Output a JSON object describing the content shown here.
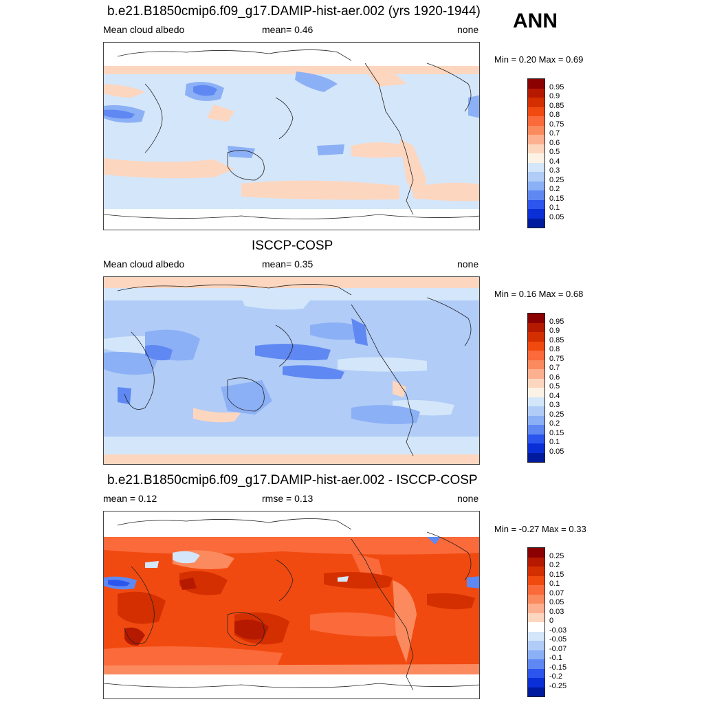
{
  "season": "ANN",
  "panels": [
    {
      "title": "b.e21.B1850cmip6.f09_g17.DAMIP-hist-aer.002 (yrs 1920-1944)",
      "left": "Mean cloud albedo",
      "center": "mean=   0.46",
      "right": "none",
      "minmax": "Min =   0.20 Max =   0.69"
    },
    {
      "title": "ISCCP-COSP",
      "left": "Mean cloud albedo",
      "center": "mean=   0.35",
      "right": "none",
      "minmax": "Min =   0.16 Max =   0.68"
    },
    {
      "title": "b.e21.B1850cmip6.f09_g17.DAMIP-hist-aer.002 - ISCCP-COSP",
      "left": "mean =   0.12",
      "center": "rmse =   0.13",
      "right": "none",
      "minmax": "Min =  -0.27 Max =   0.33"
    }
  ],
  "colorbar_abs": {
    "labels": [
      "0.95",
      "0.9",
      "0.85",
      "0.8",
      "0.75",
      "0.7",
      "0.6",
      "0.5",
      "0.4",
      "0.3",
      "0.25",
      "0.2",
      "0.15",
      "0.1",
      "0.05"
    ],
    "colors": [
      "#8b0000",
      "#b51a00",
      "#d42f00",
      "#f14a10",
      "#fa6a3a",
      "#fb8a5e",
      "#fcb090",
      "#fdd6bf",
      "#fdf2e6",
      "#d4e6fa",
      "#b0ccf7",
      "#8cb0f5",
      "#5f88f2",
      "#2c55ee",
      "#0a2fd6",
      "#001a9e"
    ]
  },
  "colorbar_diff": {
    "labels": [
      "0.25",
      "0.2",
      "0.15",
      "0.1",
      "0.07",
      "0.05",
      "0.03",
      "0",
      "-0.03",
      "-0.05",
      "-0.07",
      "-0.1",
      "-0.15",
      "-0.2",
      "-0.25"
    ],
    "colors": [
      "#8b0000",
      "#b51a00",
      "#d42f00",
      "#f14a10",
      "#fa6a3a",
      "#fb8a5e",
      "#fcb090",
      "#fdd6bf",
      "#ffffff",
      "#d4e6fa",
      "#b0ccf7",
      "#8cb0f5",
      "#5f88f2",
      "#2c55ee",
      "#0a2fd6",
      "#001a9e"
    ]
  }
}
